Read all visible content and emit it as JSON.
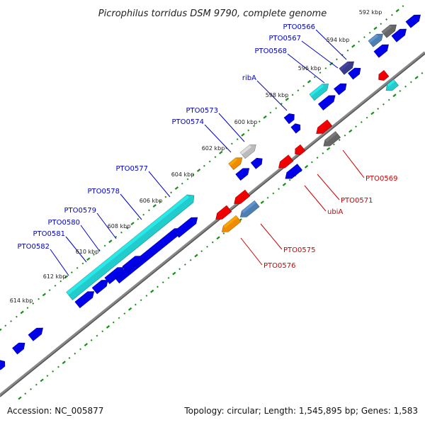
{
  "title": "Picrophilus torridus DSM 9790, complete genome",
  "footer": {
    "accession": "Accession: NC_005877",
    "summary": "Topology: circular; Length: 1,545,895 bp; Genes: 1,583"
  },
  "scale_labels": [
    "592 kbp",
    "594 kbp",
    "596 kbp",
    "598 kbp",
    "600 kbp",
    "602 kbp",
    "604 kbp",
    "606 kbp",
    "608 kbp",
    "610 kbp",
    "612 kbp",
    "614 kbp"
  ],
  "gene_labels": {
    "above": [
      "PTO0566",
      "PTO0567",
      "PTO0568",
      "ribA",
      "PTO0573",
      "PTO0574",
      "PTO0577",
      "PTO0578",
      "PTO0579",
      "PTO0580",
      "PTO0581",
      "PTO0582"
    ],
    "below": [
      "PTO0569",
      "PTO0571",
      "ubiA",
      "PTO0575",
      "PTO0576"
    ]
  },
  "colors": {
    "label_above": "#0000cc",
    "label_below": "#cc0000",
    "scale_ticks": "#1a8c1a",
    "backbone": "#777777",
    "gene_blue": "#0000e6",
    "gene_red": "#ee0000",
    "gene_cyan": "#22cccc",
    "gene_orange": "#f08c00",
    "gene_gray": "#666666",
    "gene_steel": "#4f7fb0",
    "gene_navy": "#3a3a8a",
    "gene_lightgray": "#bbbbbb"
  }
}
